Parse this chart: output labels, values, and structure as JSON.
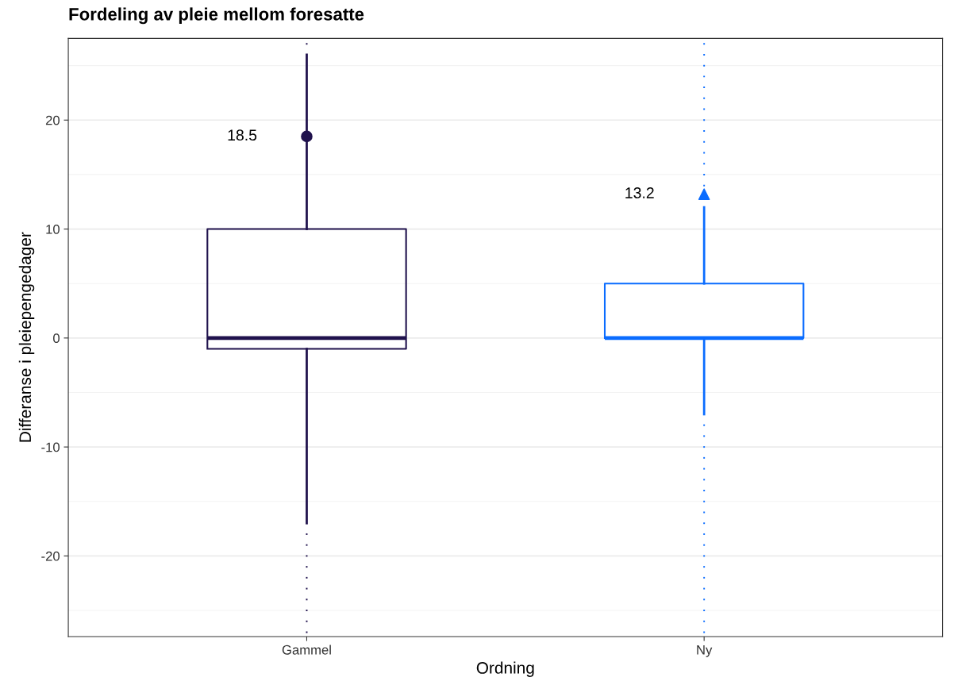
{
  "chart_data": {
    "type": "box",
    "title": "Fordeling av pleie mellom foresatte",
    "xlabel": "Ordning",
    "ylabel": "Differanse i pleiepengedager",
    "categories": [
      "Gammel",
      "Ny"
    ],
    "series": [
      {
        "color": "#20124d",
        "marker": "circle",
        "boxes": [
          {
            "low": -17,
            "q1": -1,
            "median": 0,
            "q3": 10,
            "high": 26,
            "mean": 18.5,
            "outliers": [
              27,
              -18,
              -19,
              -20,
              -21,
              -22,
              -23,
              -24,
              -25,
              -26,
              -27
            ]
          },
          null
        ],
        "value_labels": [
          "18.5",
          null
        ]
      },
      {
        "color": "#0a6cff",
        "marker": "triangle",
        "boxes": [
          null,
          {
            "low": -7,
            "q1": 0,
            "median": 0,
            "q3": 5,
            "high": 12,
            "mean": 13.2,
            "outliers": [
              14,
              15,
              16,
              17,
              18,
              19,
              20,
              21,
              22,
              23,
              24,
              25,
              26,
              27,
              -8,
              -9,
              -10,
              -11,
              -12,
              -13,
              -14,
              -15,
              -16,
              -17,
              -18,
              -19,
              -20,
              -21,
              -22,
              -23,
              -24,
              -25,
              -26,
              -27
            ]
          }
        ],
        "value_labels": [
          null,
          "13.2"
        ]
      }
    ],
    "ylim": [
      -27.4,
      27.5
    ],
    "yticks": [
      -20,
      -10,
      0,
      10,
      20
    ],
    "grid": "y"
  }
}
